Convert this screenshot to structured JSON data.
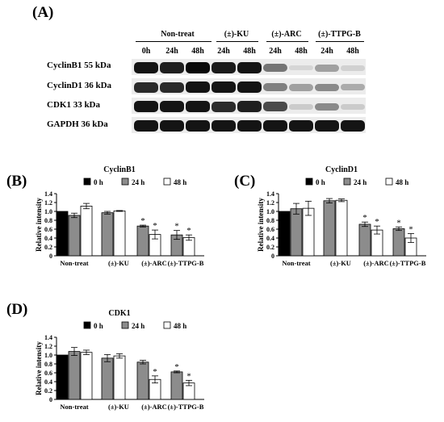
{
  "figure_label": "(A)",
  "blot": {
    "groups": [
      "Non-treat",
      "(±)-KU",
      "(±)-ARC",
      "(±)-TTPG-B"
    ],
    "times": [
      "0h",
      "24h",
      "48h",
      "24h",
      "48h",
      "24h",
      "48h",
      "24h",
      "48h"
    ],
    "rows": [
      {
        "label": "CyclinB1 55 kDa",
        "intensity": [
          1.0,
          0.95,
          1.05,
          0.97,
          1.0,
          0.55,
          0.1,
          0.35,
          0.12
        ]
      },
      {
        "label": "CyclinD1 36 kDa",
        "intensity": [
          0.9,
          0.9,
          1.0,
          1.0,
          1.0,
          0.5,
          0.35,
          0.45,
          0.3
        ]
      },
      {
        "label": "CDK1 33 kDa",
        "intensity": [
          1.0,
          1.0,
          1.0,
          0.9,
          0.95,
          0.75,
          0.15,
          0.45,
          0.15
        ]
      },
      {
        "label": "GAPDH 36 kDa",
        "intensity": [
          1.0,
          1.0,
          1.0,
          1.0,
          1.0,
          1.0,
          1.0,
          1.0,
          1.0
        ]
      }
    ]
  },
  "colors": {
    "0h": "#000000",
    "24h": "#8c8c8c",
    "48h": "#ffffff"
  },
  "chart_data": [
    {
      "panel": "(B)",
      "type": "bar",
      "title": "CyclinB1",
      "ylabel": "Relative intensity",
      "xlabel": "",
      "ylim": [
        0,
        1.4
      ],
      "yticks": [
        "0",
        "0.2",
        "0.4",
        "0.6",
        "0.8",
        "1.0",
        "1.2",
        "1.4"
      ],
      "categories": [
        "Non-treat",
        "(±)-KU",
        "(±)-ARC",
        "(±)-TTPG-B"
      ],
      "legend": [
        "0 h",
        "24 h",
        "48 h"
      ],
      "legend_position": "top-right",
      "series": [
        {
          "name": "0 h",
          "values": [
            1.0,
            null,
            null,
            null
          ],
          "errors": [
            0,
            null,
            null,
            null
          ]
        },
        {
          "name": "24 h",
          "values": [
            0.91,
            0.97,
            0.67,
            0.47
          ],
          "errors": [
            0.05,
            0.03,
            0.02,
            0.1
          ]
        },
        {
          "name": "48 h",
          "values": [
            1.12,
            1.01,
            0.48,
            0.41
          ],
          "errors": [
            0.06,
            0.01,
            0.1,
            0.06
          ]
        }
      ],
      "significance": [
        [
          null,
          null,
          null,
          null
        ],
        [
          null,
          null,
          "*",
          "*"
        ],
        [
          null,
          null,
          "*",
          "*"
        ]
      ]
    },
    {
      "panel": "(C)",
      "type": "bar",
      "title": "CyclinD1",
      "ylabel": "Relative intensity",
      "xlabel": "",
      "ylim": [
        0,
        1.4
      ],
      "yticks": [
        "0",
        "0.2",
        "0.4",
        "0.6",
        "0.8",
        "1.0",
        "1.2",
        "1.4"
      ],
      "categories": [
        "Non-treat",
        "(±)-KU",
        "(±)-ARC",
        "(±)-TTPG-B"
      ],
      "legend": [
        "0 h",
        "24 h",
        "48 h"
      ],
      "legend_position": "top-right",
      "series": [
        {
          "name": "0 h",
          "values": [
            1.0,
            null,
            null,
            null
          ],
          "errors": [
            0,
            null,
            null,
            null
          ]
        },
        {
          "name": "24 h",
          "values": [
            1.06,
            1.24,
            0.71,
            0.61
          ],
          "errors": [
            0.12,
            0.05,
            0.05,
            0.04
          ]
        },
        {
          "name": "48 h",
          "values": [
            1.07,
            1.25,
            0.58,
            0.4
          ],
          "errors": [
            0.16,
            0.03,
            0.09,
            0.1
          ]
        }
      ],
      "significance": [
        [
          null,
          null,
          null,
          null
        ],
        [
          null,
          null,
          "*",
          "*"
        ],
        [
          null,
          null,
          "*",
          "*"
        ]
      ]
    },
    {
      "panel": "(D)",
      "type": "bar",
      "title": "CDK1",
      "ylabel": "Relative intensity",
      "xlabel": "",
      "ylim": [
        0,
        1.4
      ],
      "yticks": [
        "0",
        "0.2",
        "0.4",
        "0.6",
        "0.8",
        "1.0",
        "1.2",
        "1.4"
      ],
      "categories": [
        "Non-treat",
        "(±)-KU",
        "(±)-ARC",
        "(±)-TTPG-B"
      ],
      "legend": [
        "0 h",
        "24 h",
        "48 h"
      ],
      "legend_position": "top-right",
      "series": [
        {
          "name": "0 h",
          "values": [
            1.0,
            null,
            null,
            null
          ],
          "errors": [
            0,
            null,
            null,
            null
          ]
        },
        {
          "name": "24 h",
          "values": [
            1.08,
            0.93,
            0.84,
            0.62
          ],
          "errors": [
            0.09,
            0.08,
            0.04,
            0.02
          ]
        },
        {
          "name": "48 h",
          "values": [
            1.06,
            0.98,
            0.45,
            0.37
          ],
          "errors": [
            0.05,
            0.05,
            0.08,
            0.06
          ]
        }
      ],
      "significance": [
        [
          null,
          null,
          null,
          null
        ],
        [
          null,
          null,
          null,
          "*"
        ],
        [
          null,
          null,
          "*",
          "*"
        ]
      ]
    }
  ]
}
